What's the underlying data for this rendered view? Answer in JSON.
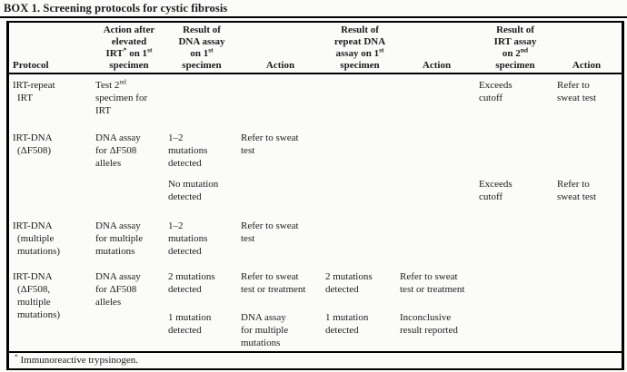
{
  "title": "BOX 1. Screening protocols for cystic fibrosis",
  "colors": {
    "text": "#1c1c1c",
    "border": "#000000",
    "background": "#fbfbfa"
  },
  "table": {
    "headers": [
      "Protocol",
      "Action after\nelevated\nIRT^{*} on 1^{st}\nspecimen",
      "Result of\nDNA assay\non 1^{st}\nspecimen",
      "Action",
      "Result of\nrepeat DNA\nassay on 1^{st}\nspecimen",
      "Action",
      "Result of\nIRT assay\non 2^{nd}\nspecimen",
      "Action"
    ],
    "rows": [
      {
        "cells": [
          "IRT-repeat\nIRT",
          "Test 2^{nd}\nspecimen for\nIRT",
          "",
          "",
          "",
          "",
          "Exceeds\ncutoff",
          "Refer to\nsweat test"
        ]
      },
      {
        "cells": [
          "IRT-DNA\n(ΔF508)",
          "DNA assay\nfor ΔF508\nalleles",
          "1–2\nmutations\ndetected",
          "Refer to sweat\ntest",
          "",
          "",
          "",
          ""
        ]
      },
      {
        "cells": [
          "",
          "",
          "No mutation\ndetected",
          "",
          "",
          "",
          "Exceeds\ncutoff",
          "Refer to\nsweat test"
        ]
      },
      {
        "cells": [
          "IRT-DNA\n(multiple\nmutations)",
          "DNA assay\nfor multiple\nmutations",
          "1–2\nmutations\ndetected",
          "Refer to sweat\ntest",
          "",
          "",
          "",
          ""
        ]
      },
      {
        "cells": [
          "IRT-DNA\n(ΔF508,\nmultiple\nmutations)",
          "DNA assay\nfor ΔF508\nalleles",
          "2 mutations\ndetected",
          "Refer to sweat\ntest or treatment",
          "2 mutations\ndetected",
          "Refer to sweat\ntest or treatment",
          "",
          ""
        ]
      },
      {
        "cells": [
          "",
          "",
          "1 mutation\ndetected",
          "DNA assay\nfor multiple\nmutations",
          "1 mutation\ndetected",
          "Inconclusive\nresult reported",
          "",
          ""
        ]
      }
    ]
  },
  "footnote": "^{*} Immunoreactive trypsinogen."
}
